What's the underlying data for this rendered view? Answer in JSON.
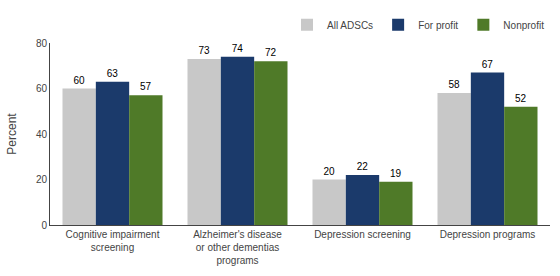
{
  "chart_data": {
    "type": "bar",
    "categories": [
      "Cognitive impairment\nscreening",
      "Alzheimer's disease\nor other dementias\nprograms",
      "Depression screening",
      "Depression programs"
    ],
    "series": [
      {
        "name": "All ADSCs",
        "color": "#c8c8c8",
        "values": [
          60,
          73,
          20,
          58
        ]
      },
      {
        "name": "For profit",
        "color": "#1b3a6b",
        "values": [
          63,
          74,
          22,
          67
        ]
      },
      {
        "name": "Nonprofit",
        "color": "#4f7a28",
        "values": [
          57,
          72,
          19,
          52
        ]
      }
    ],
    "y_label": "Percent",
    "ylim": [
      0,
      80
    ],
    "yticks": [
      0,
      20,
      40,
      60,
      80
    ],
    "grid": false,
    "legend": "upper right",
    "data_labels": true
  }
}
